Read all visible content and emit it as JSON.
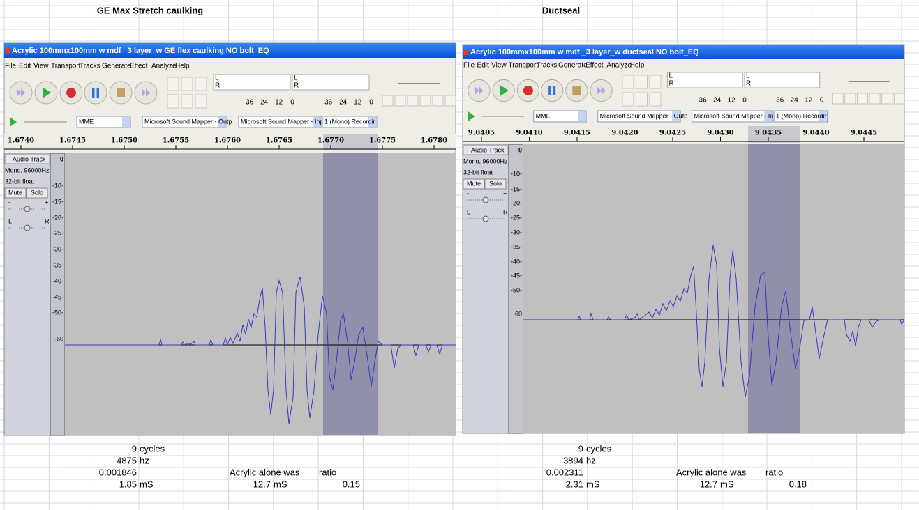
{
  "panels": [
    {
      "heading": "GE Max Stretch caulking",
      "window": {
        "title": "Acrylic 100mmx100mm w mdf _3 layer_w GE flex caulking NO bolt_EQ",
        "menu": [
          "File",
          "Edit",
          "View",
          "Transport",
          "Tracks",
          "Generate",
          "Effect",
          "Analyze",
          "Help"
        ],
        "meter_channels": [
          "L",
          "R"
        ],
        "meter_scale": [
          "-36",
          "-24",
          "-12",
          "0"
        ],
        "devices": [
          "MME",
          "Microsoft Sound Mapper - Outp",
          "Microsoft Sound Mapper - Inpu",
          "1 (Mono) Recordir"
        ],
        "ruler_ticks": [
          "1.6740",
          "1.6745",
          "1.6750",
          "1.6755",
          "1.6760",
          "1.6765",
          "1.6770",
          "1.6775",
          "1.6780"
        ]
      },
      "track": {
        "name": "Audio Track",
        "info": [
          "Mono, 96000Hz",
          "32-bit float"
        ],
        "buttons": [
          "Mute",
          "Solo"
        ],
        "gain": [
          "-",
          "+"
        ],
        "pan": [
          "L",
          "R"
        ],
        "db_scale": [
          "0",
          "-10-",
          "-15-",
          "-20-",
          "-25-",
          "-30-",
          "-35-",
          "-40-",
          "-45-",
          "-50-",
          "-60"
        ]
      },
      "notes": {
        "rows": [
          [
            9,
            "cycles"
          ],
          [
            4875,
            "hz"
          ],
          [
            0.001846
          ],
          [
            1.85,
            "mS"
          ]
        ],
        "comparison": {
          "label": "Acrylic alone was",
          "value": 12.7,
          "unit": "mS",
          "ratio_label": "ratio",
          "ratio": 0.15
        }
      }
    },
    {
      "heading": "Ductseal",
      "window": {
        "title": "Acrylic 100mmx100mm w mdf _3 layer_w ductseal NO bolt_EQ",
        "menu": [
          "File",
          "Edit",
          "View",
          "Transport",
          "Tracks",
          "Generate",
          "Effect",
          "Analyze",
          "Help"
        ],
        "meter_channels": [
          "L",
          "R"
        ],
        "meter_scale": [
          "-36",
          "-24",
          "-12",
          "0"
        ],
        "devices": [
          "MME",
          "Microsoft Sound Mapper - Outp",
          "Microsoft Sound Mapper - Inpu",
          "1 (Mono) Recordir"
        ],
        "ruler_ticks": [
          "9.0405",
          "9.0410",
          "9.0415",
          "9.0420",
          "9.0425",
          "9.0430",
          "9.0435",
          "9.0440",
          "9.0445"
        ]
      },
      "track": {
        "name": "Audio Track",
        "info": [
          "Mono, 96000Hz",
          "32-bit float"
        ],
        "buttons": [
          "Mute",
          "Solo"
        ],
        "gain": [
          "-",
          "+"
        ],
        "pan": [
          "L",
          "R"
        ],
        "db_scale": [
          "0",
          "-10-",
          "-15-",
          "-20-",
          "-25-",
          "-30-",
          "-35-",
          "-40-",
          "-45-",
          "-50-",
          "-60"
        ]
      },
      "notes": {
        "rows": [
          [
            9,
            "cycles"
          ],
          [
            3894,
            "hz"
          ],
          [
            0.002311
          ],
          [
            2.31,
            "mS"
          ]
        ],
        "comparison": {
          "label": "Acrylic alone was",
          "value": 12.7,
          "unit": "mS",
          "ratio_label": "ratio",
          "ratio": 0.18
        }
      }
    }
  ]
}
